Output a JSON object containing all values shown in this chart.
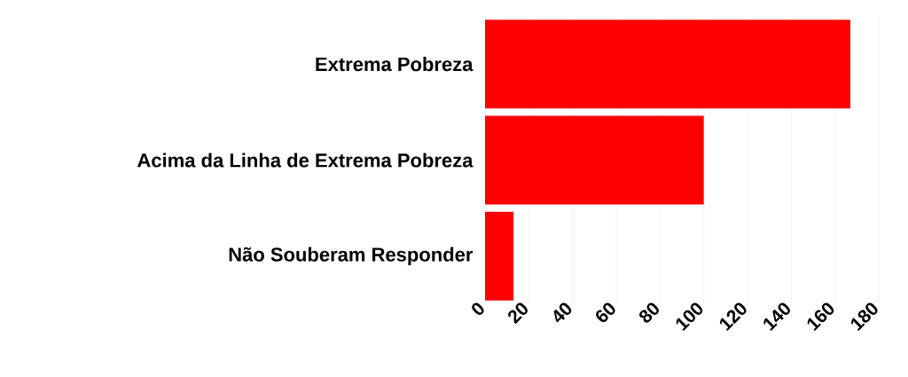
{
  "chart_data": {
    "type": "bar",
    "orientation": "horizontal",
    "categories": [
      "Extrema Pobreza",
      "Acima da Linha de Extrema Pobreza",
      "Não Souberam Responder"
    ],
    "values": [
      167,
      100,
      13
    ],
    "color": "#fe0000",
    "xlim": [
      0,
      180
    ],
    "xticks": [
      0,
      20,
      40,
      60,
      80,
      100,
      120,
      140,
      160,
      180
    ],
    "grid": "x"
  }
}
